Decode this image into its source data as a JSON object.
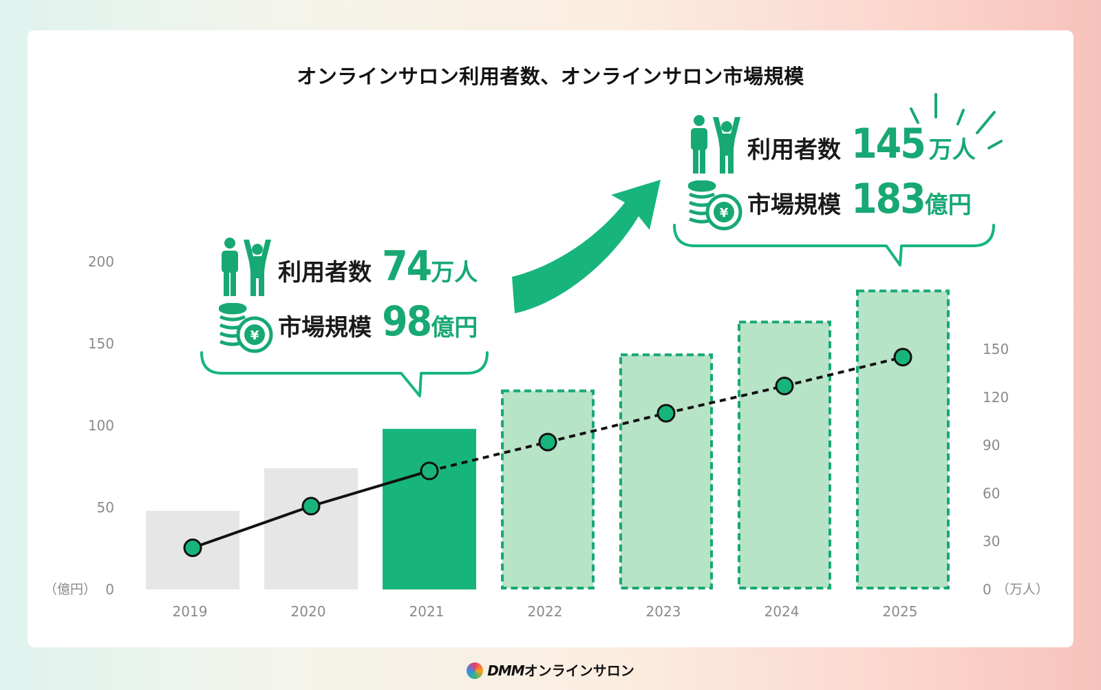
{
  "title": "オンラインサロン利用者数、オンラインサロン市場規模",
  "left_axis": {
    "unit": "（億円）",
    "ticks": [
      "0",
      "50",
      "100",
      "150",
      "200"
    ]
  },
  "right_axis": {
    "unit": "（万人）",
    "ticks": [
      "0",
      "30",
      "60",
      "90",
      "120",
      "150"
    ]
  },
  "callout_2021": {
    "users_label": "利用者数",
    "users_value": "74",
    "users_unit": "万人",
    "market_label": "市場規模",
    "market_value": "98",
    "market_unit": "億円"
  },
  "callout_2025": {
    "users_label": "利用者数",
    "users_value": "145",
    "users_unit": "万人",
    "market_label": "市場規模",
    "market_value": "183",
    "market_unit": "億円"
  },
  "footer": {
    "brand": "DMM",
    "service": "オンラインサロン"
  },
  "colors": {
    "actual_past": "#e6e6e6",
    "actual_current": "#17b57c",
    "forecast_fill": "#b7e3c6",
    "forecast_border": "#17a874",
    "accent": "#17a874"
  },
  "chart_data": {
    "type": "bar",
    "categories": [
      "2019",
      "2020",
      "2021",
      "2022",
      "2023",
      "2024",
      "2025"
    ],
    "series": [
      {
        "name": "市場規模",
        "axis": "left",
        "unit": "億円",
        "values": [
          48,
          74,
          98,
          122,
          144,
          164,
          183
        ],
        "style": [
          "actual",
          "actual",
          "actual-highlight",
          "forecast",
          "forecast",
          "forecast",
          "forecast"
        ]
      },
      {
        "name": "利用者数",
        "axis": "right",
        "unit": "万人",
        "type": "line",
        "values": [
          26,
          52,
          74,
          92,
          110,
          127,
          145
        ],
        "style": [
          "solid",
          "solid",
          "solid",
          "dotted",
          "dotted",
          "dotted",
          "dotted"
        ]
      }
    ],
    "ylim_left": [
      0,
      200
    ],
    "ylim_right": [
      0,
      150
    ],
    "grid": false
  }
}
